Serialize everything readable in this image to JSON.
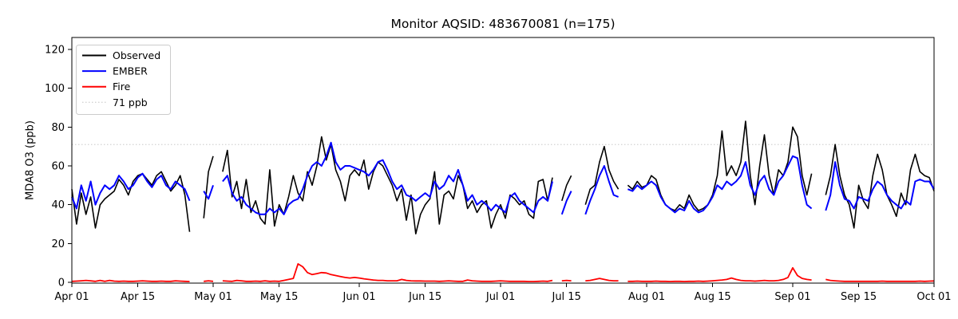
{
  "figure": {
    "title": "Monitor AQSID: 483670081 (n=175)"
  },
  "chart_data": {
    "type": "line",
    "title": "Monitor AQSID: 483670081 (n=175)",
    "ylabel": "MDA8 O3 (ppb)",
    "xlabel": "",
    "grid": false,
    "legend_position": "upper left",
    "n_days": 184,
    "n_points": 175,
    "ylim": [
      0,
      126
    ],
    "yticks": [
      0,
      20,
      40,
      60,
      80,
      100,
      120
    ],
    "xticks": [
      {
        "label": "Apr 01",
        "day": 0
      },
      {
        "label": "Apr 15",
        "day": 14
      },
      {
        "label": "May 01",
        "day": 30
      },
      {
        "label": "May 15",
        "day": 44
      },
      {
        "label": "Jun 01",
        "day": 61
      },
      {
        "label": "Jun 15",
        "day": 75
      },
      {
        "label": "Jul 01",
        "day": 91
      },
      {
        "label": "Jul 15",
        "day": 105
      },
      {
        "label": "Aug 01",
        "day": 122
      },
      {
        "label": "Aug 15",
        "day": 136
      },
      {
        "label": "Sep 01",
        "day": 153
      },
      {
        "label": "Sep 15",
        "day": 167
      },
      {
        "label": "Oct 01",
        "day": 183
      }
    ],
    "threshold": {
      "value": 71,
      "label": "71 ppb",
      "color": "#d3d3d3",
      "style": "dotted"
    },
    "legend": [
      {
        "label": "Observed",
        "color": "#000000",
        "dash": ""
      },
      {
        "label": "EMBER",
        "color": "#0000ff",
        "dash": ""
      },
      {
        "label": "Fire",
        "color": "#ff0000",
        "dash": ""
      },
      {
        "label": "71 ppb",
        "color": "#d3d3d3",
        "dash": "1.5,2.5"
      }
    ],
    "series": [
      {
        "name": "Observed",
        "color": "#000000",
        "width": 1.6,
        "values": [
          48,
          30,
          46,
          35,
          44,
          28,
          40,
          43,
          45,
          47,
          53,
          50,
          45,
          52,
          55,
          56,
          53,
          50,
          55,
          57,
          52,
          47,
          50,
          55,
          45,
          26,
          null,
          null,
          33,
          57,
          65,
          null,
          57,
          68,
          44,
          52,
          38,
          53,
          36,
          42,
          33,
          30,
          58,
          29,
          40,
          35,
          44,
          55,
          46,
          42,
          57,
          50,
          60,
          75,
          63,
          71,
          58,
          52,
          42,
          55,
          58,
          55,
          63,
          48,
          57,
          62,
          60,
          55,
          50,
          42,
          48,
          32,
          45,
          25,
          35,
          40,
          43,
          57,
          30,
          45,
          47,
          43,
          55,
          50,
          38,
          42,
          36,
          40,
          42,
          28,
          35,
          40,
          33,
          45,
          43,
          40,
          42,
          35,
          33,
          52,
          53,
          42,
          54,
          null,
          42,
          50,
          55,
          null,
          null,
          40,
          48,
          50,
          62,
          70,
          58,
          52,
          48,
          null,
          50,
          48,
          52,
          49,
          50,
          55,
          53,
          45,
          40,
          38,
          37,
          40,
          38,
          45,
          40,
          37,
          38,
          40,
          45,
          55,
          78,
          55,
          60,
          55,
          62,
          83,
          55,
          40,
          60,
          76,
          55,
          45,
          58,
          55,
          62,
          80,
          75,
          55,
          45,
          56,
          null,
          null,
          45,
          55,
          71,
          55,
          45,
          40,
          28,
          50,
          42,
          38,
          55,
          66,
          58,
          45,
          40,
          34,
          46,
          40,
          58,
          66,
          57,
          55,
          54,
          47
        ]
      },
      {
        "name": "EMBER",
        "color": "#0000ff",
        "width": 2.0,
        "values": [
          44,
          38,
          50,
          42,
          52,
          40,
          46,
          50,
          48,
          50,
          55,
          52,
          48,
          50,
          54,
          56,
          52,
          49,
          53,
          55,
          50,
          48,
          52,
          50,
          48,
          42,
          null,
          null,
          47,
          43,
          50,
          null,
          52,
          55,
          46,
          42,
          44,
          40,
          38,
          36,
          35,
          35,
          38,
          36,
          38,
          35,
          40,
          42,
          43,
          48,
          55,
          60,
          62,
          60,
          65,
          72,
          62,
          58,
          60,
          60,
          59,
          58,
          57,
          55,
          58,
          62,
          63,
          58,
          52,
          48,
          50,
          45,
          44,
          42,
          44,
          46,
          44,
          52,
          48,
          50,
          55,
          52,
          58,
          50,
          42,
          45,
          40,
          42,
          40,
          37,
          40,
          38,
          36,
          44,
          46,
          42,
          40,
          38,
          36,
          42,
          44,
          42,
          52,
          null,
          35,
          42,
          47,
          null,
          null,
          35,
          42,
          48,
          55,
          60,
          52,
          45,
          44,
          null,
          48,
          47,
          50,
          48,
          50,
          52,
          50,
          44,
          40,
          38,
          36,
          38,
          37,
          42,
          38,
          36,
          37,
          40,
          44,
          50,
          48,
          52,
          50,
          52,
          55,
          62,
          50,
          45,
          52,
          55,
          48,
          45,
          52,
          55,
          60,
          65,
          64,
          50,
          40,
          38,
          null,
          null,
          37,
          45,
          62,
          50,
          43,
          42,
          38,
          44,
          43,
          42,
          48,
          52,
          50,
          45,
          42,
          40,
          38,
          42,
          40,
          52,
          53,
          52,
          52,
          48
        ]
      },
      {
        "name": "Fire",
        "color": "#ff0000",
        "width": 1.8,
        "values": [
          0.5,
          0.6,
          0.8,
          1,
          0.8,
          0.5,
          1,
          0.5,
          1,
          0.6,
          0.5,
          0.6,
          0.5,
          0.5,
          0.6,
          0.8,
          0.6,
          0.5,
          0.5,
          0.6,
          0.5,
          0.5,
          0.8,
          0.6,
          0.5,
          0.4,
          null,
          null,
          0.5,
          0.8,
          0.5,
          null,
          0.8,
          0.6,
          0.5,
          1,
          0.8,
          0.5,
          0.5,
          0.6,
          0.5,
          0.8,
          0.5,
          0.6,
          0.5,
          1,
          1.5,
          2,
          9.5,
          8,
          5,
          4,
          4.5,
          5,
          4.8,
          4,
          3.5,
          3,
          2.5,
          2.2,
          2.5,
          2.2,
          1.8,
          1.5,
          1.2,
          1,
          1,
          0.8,
          0.8,
          0.8,
          1.5,
          1,
          0.8,
          0.7,
          0.7,
          0.6,
          0.6,
          0.6,
          0.5,
          0.6,
          0.8,
          0.6,
          0.5,
          0.5,
          1.2,
          0.8,
          0.6,
          0.5,
          0.5,
          0.5,
          0.6,
          0.8,
          0.6,
          0.5,
          0.5,
          0.5,
          0.5,
          0.4,
          0.4,
          0.5,
          0.6,
          0.5,
          1,
          null,
          0.8,
          1,
          0.8,
          null,
          null,
          0.8,
          1,
          1.5,
          2,
          1.5,
          1,
          0.8,
          0.8,
          null,
          0.5,
          0.5,
          0.6,
          0.5,
          0.5,
          0.5,
          0.6,
          0.5,
          0.5,
          0.4,
          0.5,
          0.5,
          0.4,
          0.5,
          0.5,
          0.6,
          0.5,
          0.6,
          0.8,
          1,
          1.2,
          1.5,
          2.2,
          1.5,
          1,
          0.8,
          0.8,
          0.6,
          0.8,
          1,
          0.8,
          0.8,
          1,
          1.5,
          2.5,
          7.5,
          3.5,
          2,
          1.5,
          1.2,
          null,
          null,
          1.5,
          1,
          0.8,
          0.6,
          0.5,
          0.5,
          0.5,
          0.5,
          0.5,
          0.5,
          0.5,
          0.5,
          0.6,
          0.5,
          0.5,
          0.5,
          0.5,
          0.5,
          0.5,
          0.5,
          0.6,
          0.5,
          0.6,
          0.7
        ]
      }
    ]
  }
}
